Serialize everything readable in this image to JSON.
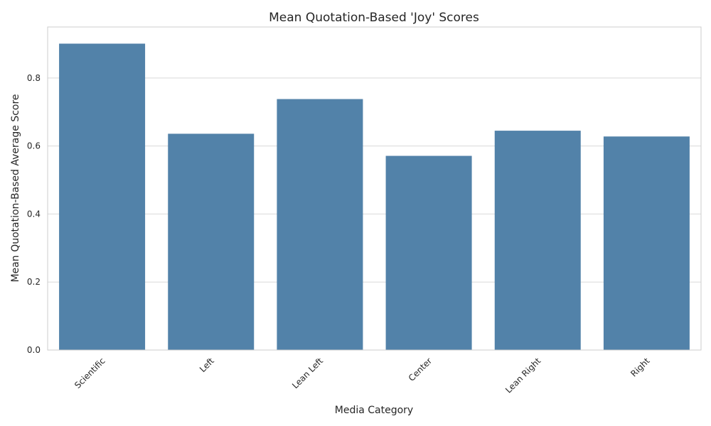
{
  "chart_data": {
    "type": "bar",
    "title": "Mean Quotation-Based 'Joy' Scores",
    "xlabel": "Media Category",
    "ylabel": "Mean Quotation-Based Average Score",
    "categories": [
      "Scientific",
      "Left",
      "Lean Left",
      "Center",
      "Lean Right",
      "Right"
    ],
    "values": [
      0.901,
      0.636,
      0.738,
      0.571,
      0.645,
      0.628
    ],
    "ylim": [
      0,
      0.95
    ],
    "yticks": [
      0.0,
      0.2,
      0.4,
      0.6,
      0.8
    ],
    "ytick_labels": [
      "0.0",
      "0.2",
      "0.4",
      "0.6",
      "0.8"
    ],
    "bar_color": "#5282a9",
    "grid": "horizontal",
    "grid_color": "#d9d9d9",
    "spine_color": "#cccccc"
  }
}
